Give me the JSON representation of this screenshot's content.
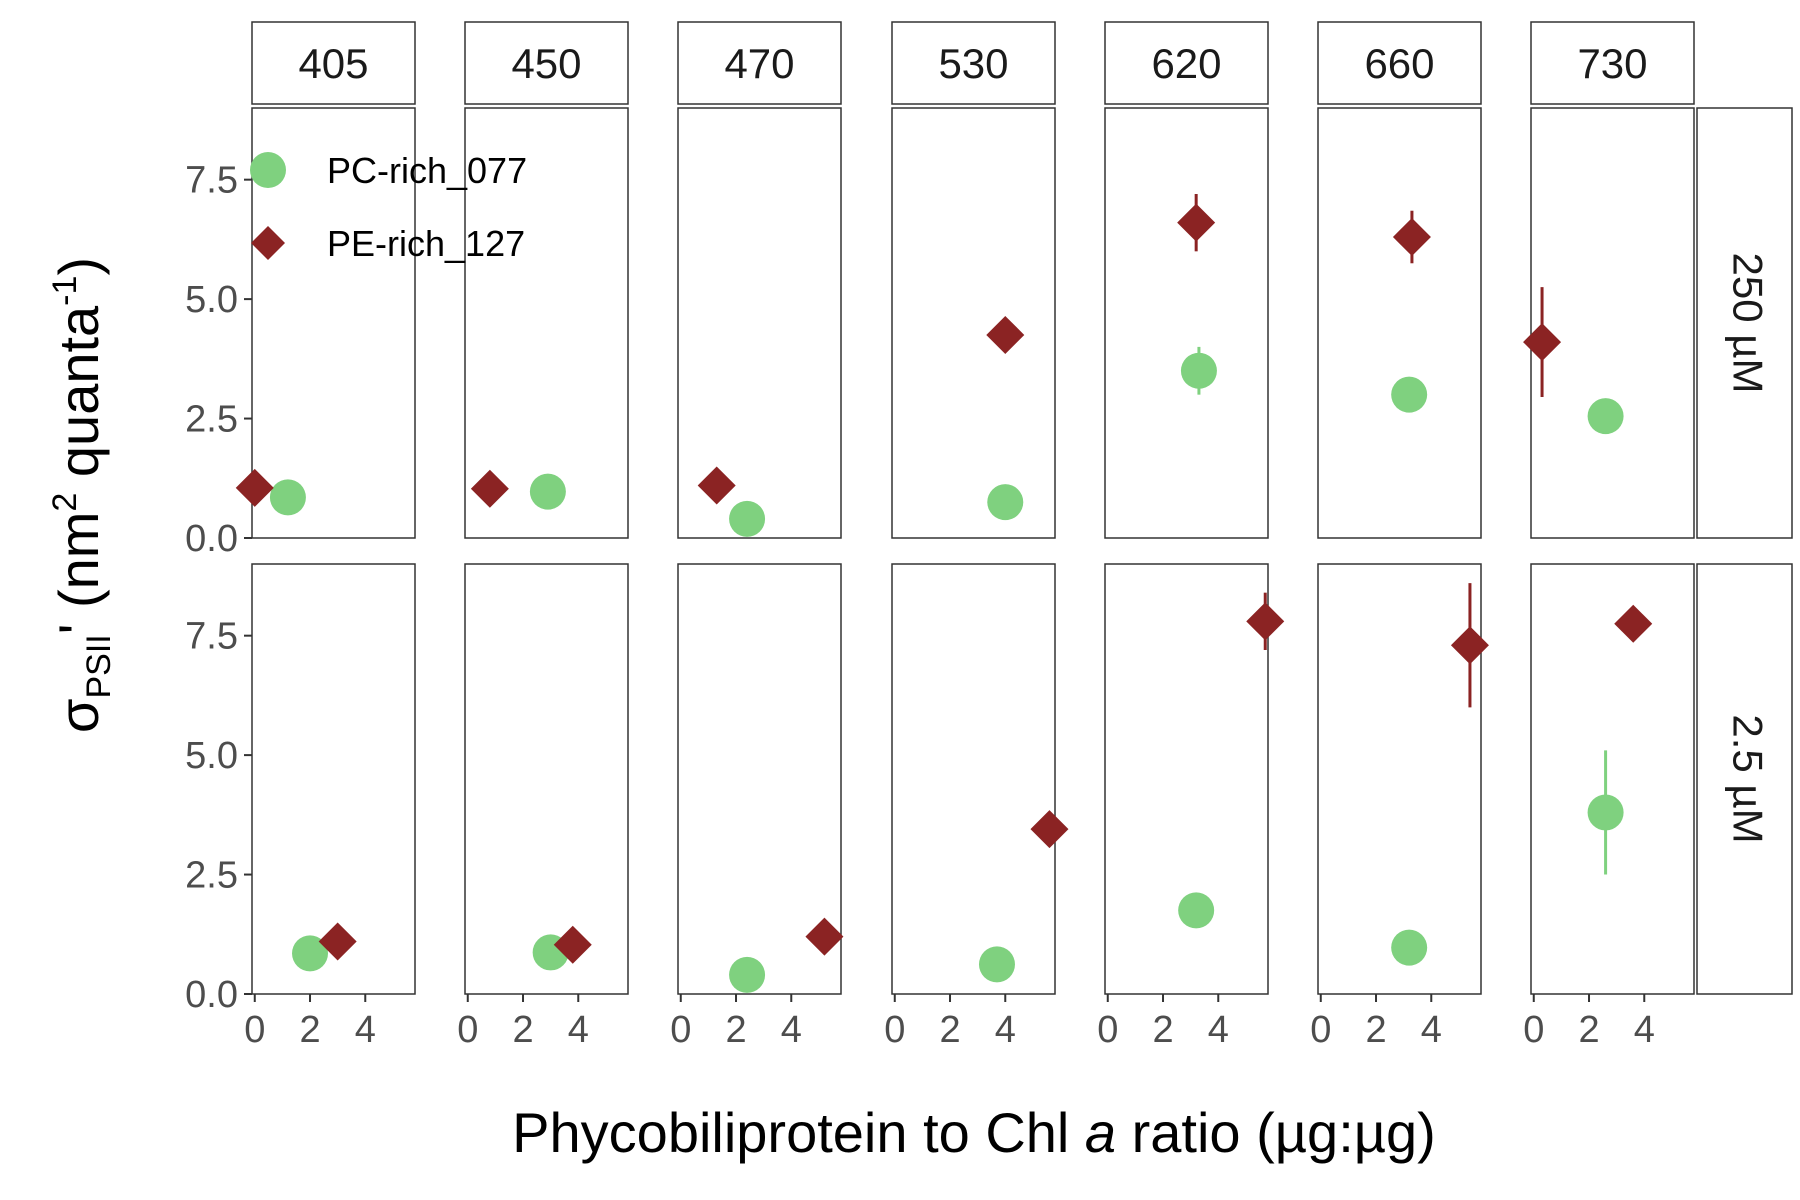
{
  "chart_data": {
    "type": "scatter",
    "facet_columns": [
      "405",
      "450",
      "470",
      "530",
      "620",
      "660",
      "730"
    ],
    "facet_rows": [
      "250 µM",
      "2.5 µM"
    ],
    "xlabel_parts": [
      "Phycobiliprotein to Chl ",
      "a",
      " ratio (µg:µg)"
    ],
    "ylabel_parts": {
      "sigma": "σ",
      "sub": "PSII",
      "prime": "' (nm",
      "sup1": "2",
      "mid": " quanta",
      "sup2": "-1",
      "close": ")"
    },
    "xlim": [
      -0.1,
      5.8
    ],
    "ylim": [
      0,
      9
    ],
    "xticks": [
      0,
      2,
      4
    ],
    "yticks": [
      0.0,
      2.5,
      5.0,
      7.5
    ],
    "ytick_labels": [
      "0.0",
      "2.5",
      "5.0",
      "7.5"
    ],
    "legend_position": "top-left",
    "series": [
      {
        "name": "PC-rich_077",
        "color": "#7fd17f",
        "shape": "circle",
        "points": [
          {
            "col": "405",
            "row": "250 µM",
            "x": 1.2,
            "y": 0.85,
            "err": 0
          },
          {
            "col": "450",
            "row": "250 µM",
            "x": 2.9,
            "y": 0.97,
            "err": 0
          },
          {
            "col": "470",
            "row": "250 µM",
            "x": 2.4,
            "y": 0.4,
            "err": 0
          },
          {
            "col": "530",
            "row": "250 µM",
            "x": 4.0,
            "y": 0.75,
            "err": 0
          },
          {
            "col": "620",
            "row": "250 µM",
            "x": 3.3,
            "y": 3.5,
            "err": 0.5
          },
          {
            "col": "660",
            "row": "250 µM",
            "x": 3.2,
            "y": 3.0,
            "err": 0
          },
          {
            "col": "730",
            "row": "250 µM",
            "x": 2.6,
            "y": 2.55,
            "err": 0
          },
          {
            "col": "405",
            "row": "2.5 µM",
            "x": 2.0,
            "y": 0.85,
            "err": 0
          },
          {
            "col": "450",
            "row": "2.5 µM",
            "x": 3.0,
            "y": 0.87,
            "err": 0
          },
          {
            "col": "470",
            "row": "2.5 µM",
            "x": 2.4,
            "y": 0.4,
            "err": 0
          },
          {
            "col": "530",
            "row": "2.5 µM",
            "x": 3.7,
            "y": 0.62,
            "err": 0
          },
          {
            "col": "620",
            "row": "2.5 µM",
            "x": 3.2,
            "y": 1.75,
            "err": 0
          },
          {
            "col": "660",
            "row": "2.5 µM",
            "x": 3.2,
            "y": 0.97,
            "err": 0
          },
          {
            "col": "730",
            "row": "2.5 µM",
            "x": 2.6,
            "y": 3.8,
            "err": 1.3
          }
        ]
      },
      {
        "name": "PE-rich_127",
        "color": "#8b2323",
        "shape": "diamond",
        "points": [
          {
            "col": "405",
            "row": "250 µM",
            "x": 0.0,
            "y": 1.05,
            "err": 0
          },
          {
            "col": "450",
            "row": "250 µM",
            "x": 0.8,
            "y": 1.03,
            "err": 0
          },
          {
            "col": "470",
            "row": "250 µM",
            "x": 1.3,
            "y": 1.1,
            "err": 0
          },
          {
            "col": "530",
            "row": "250 µM",
            "x": 4.0,
            "y": 4.25,
            "err": 0
          },
          {
            "col": "620",
            "row": "250 µM",
            "x": 3.2,
            "y": 6.6,
            "err": 0.6
          },
          {
            "col": "660",
            "row": "250 µM",
            "x": 3.3,
            "y": 6.3,
            "err": 0.55
          },
          {
            "col": "730",
            "row": "250 µM",
            "x": 0.3,
            "y": 4.1,
            "err": 1.15
          },
          {
            "col": "405",
            "row": "2.5 µM",
            "x": 3.0,
            "y": 1.1,
            "err": 0
          },
          {
            "col": "450",
            "row": "2.5 µM",
            "x": 3.8,
            "y": 1.03,
            "err": 0
          },
          {
            "col": "470",
            "row": "2.5 µM",
            "x": 5.2,
            "y": 1.2,
            "err": 0
          },
          {
            "col": "530",
            "row": "2.5 µM",
            "x": 5.6,
            "y": 3.45,
            "err": 0
          },
          {
            "col": "620",
            "row": "2.5 µM",
            "x": 5.7,
            "y": 7.8,
            "err": 0.6
          },
          {
            "col": "660",
            "row": "2.5 µM",
            "x": 5.4,
            "y": 7.3,
            "err": 1.3
          },
          {
            "col": "730",
            "row": "2.5 µM",
            "x": 3.6,
            "y": 7.75,
            "err": 0
          }
        ]
      }
    ]
  }
}
